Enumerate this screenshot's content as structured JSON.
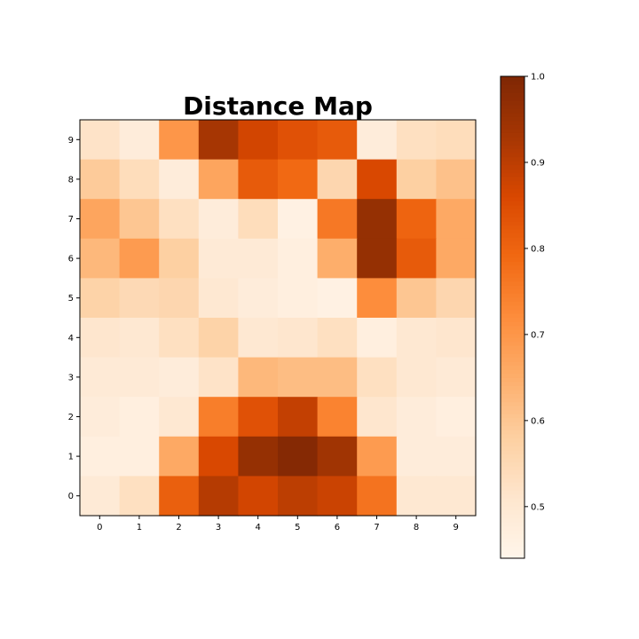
{
  "chart_data": {
    "type": "heatmap",
    "title": "Distance Map",
    "xlabel": "",
    "ylabel": "",
    "x": [
      0,
      1,
      2,
      3,
      4,
      5,
      6,
      7,
      8,
      9
    ],
    "y": [
      0,
      1,
      2,
      3,
      4,
      5,
      6,
      7,
      8,
      9
    ],
    "x_tick_labels": [
      "0",
      "1",
      "2",
      "3",
      "4",
      "5",
      "6",
      "7",
      "8",
      "9"
    ],
    "y_tick_labels": [
      "0",
      "1",
      "2",
      "3",
      "4",
      "5",
      "6",
      "7",
      "8",
      "9"
    ],
    "colormap": "Oranges",
    "colorbar": {
      "vmin": 0.44,
      "vmax": 1.0,
      "ticks": [
        0.5,
        0.6,
        0.7,
        0.8,
        0.9,
        1.0
      ],
      "tick_labels": [
        "0.5",
        "0.6",
        "0.7",
        "0.8",
        "0.9",
        "1.0"
      ]
    },
    "rows_top_to_bottom_y": [
      9,
      8,
      7,
      6,
      5,
      4,
      3,
      2,
      1,
      0
    ],
    "values": [
      [
        0.52,
        0.48,
        0.7,
        0.93,
        0.87,
        0.84,
        0.82,
        0.48,
        0.53,
        0.54
      ],
      [
        0.59,
        0.54,
        0.48,
        0.67,
        0.82,
        0.79,
        0.56,
        0.86,
        0.58,
        0.61
      ],
      [
        0.67,
        0.6,
        0.53,
        0.48,
        0.54,
        0.46,
        0.76,
        0.96,
        0.8,
        0.66
      ],
      [
        0.63,
        0.69,
        0.58,
        0.49,
        0.49,
        0.47,
        0.65,
        0.96,
        0.82,
        0.66
      ],
      [
        0.57,
        0.55,
        0.56,
        0.5,
        0.48,
        0.47,
        0.46,
        0.72,
        0.6,
        0.56
      ],
      [
        0.51,
        0.5,
        0.53,
        0.57,
        0.5,
        0.51,
        0.53,
        0.47,
        0.5,
        0.51
      ],
      [
        0.49,
        0.49,
        0.48,
        0.52,
        0.63,
        0.62,
        0.62,
        0.53,
        0.5,
        0.49
      ],
      [
        0.48,
        0.47,
        0.5,
        0.75,
        0.84,
        0.89,
        0.74,
        0.51,
        0.48,
        0.47
      ],
      [
        0.47,
        0.47,
        0.66,
        0.86,
        0.96,
        0.99,
        0.94,
        0.69,
        0.48,
        0.48
      ],
      [
        0.49,
        0.53,
        0.81,
        0.91,
        0.87,
        0.9,
        0.88,
        0.77,
        0.5,
        0.5
      ]
    ]
  }
}
